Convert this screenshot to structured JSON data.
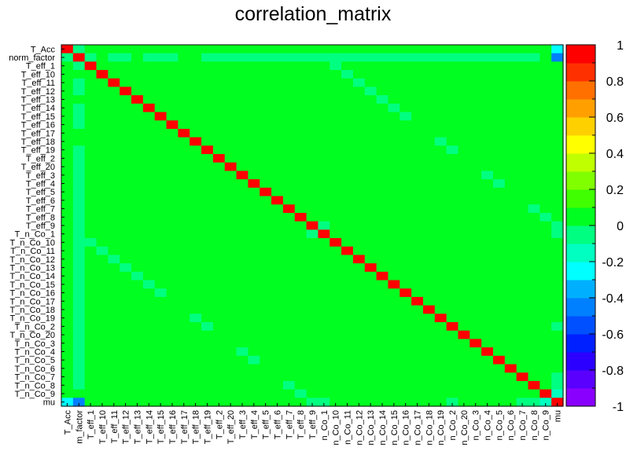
{
  "chart_data": {
    "type": "heatmap",
    "title": "correlation_matrix",
    "xlabel": "",
    "ylabel": "",
    "labels": [
      "T_Acc",
      "norm_factor",
      "T_eff_1",
      "T_eff_10",
      "T_eff_11",
      "T_eff_12",
      "T_eff_13",
      "T_eff_14",
      "T_eff_15",
      "T_eff_16",
      "T_eff_17",
      "T_eff_18",
      "T_eff_19",
      "T_eff_2",
      "T_eff_20",
      "T_eff_3",
      "T_eff_4",
      "T_eff_5",
      "T_eff_6",
      "T_eff_7",
      "T_eff_8",
      "T_eff_9",
      "T_n_Co_1",
      "T_n_Co_10",
      "T_n_Co_11",
      "T_n_Co_12",
      "T_n_Co_13",
      "T_n_Co_14",
      "T_n_Co_15",
      "T_n_Co_16",
      "T_n_Co_17",
      "T_n_Co_18",
      "T_n_Co_19",
      "T_n_Co_2",
      "T_n_Co_20",
      "T_n_Co_3",
      "T_n_Co_4",
      "T_n_Co_5",
      "T_n_Co_6",
      "T_n_Co_7",
      "T_n_Co_8",
      "T_n_Co_9",
      "mu"
    ],
    "x_tick_labels": [
      "T_Acc",
      "m_factor",
      "T_eff_1",
      "T_eff_10",
      "T_eff_11",
      "T_eff_12",
      "T_eff_13",
      "T_eff_14",
      "T_eff_15",
      "T_eff_16",
      "T_eff_17",
      "T_eff_18",
      "T_eff_19",
      "T_eff_2",
      "T_eff_20",
      "T_eff_3",
      "T_eff_4",
      "T_eff_5",
      "T_eff_6",
      "T_eff_7",
      "T_eff_8",
      "T_eff_9",
      "n_Co_1",
      "n_Co_10",
      "n_Co_11",
      "n_Co_12",
      "n_Co_13",
      "n_Co_14",
      "n_Co_15",
      "n_Co_16",
      "n_Co_17",
      "n_Co_18",
      "n_Co_19",
      "n_Co_2",
      "n_Co_20",
      "n_Co_3",
      "n_Co_4",
      "n_Co_5",
      "n_Co_6",
      "n_Co_7",
      "n_Co_8",
      "n_Co_9",
      "mu"
    ],
    "y_tick_labels": [
      "T_Acc",
      "norm_factor",
      "T_eff_1",
      "T_eff_10",
      "T_eff_11",
      "T_eff_12",
      "T_eff_13",
      "T_eff_14",
      "T_eff_15",
      "T_eff_16",
      "T_eff_17",
      "T_eff_18",
      "T_eff_19",
      "T_eff_2",
      "T_eff_20",
      "T_eff_3",
      "T_eff_4",
      "T_eff_5",
      "T_eff_6",
      "T_eff_7",
      "T_eff_8",
      "T_eff_9",
      "T_n_Co_1",
      "T_n_Co_10",
      "T_n_Co_11",
      "T_n_Co_12",
      "T_n_Co_13",
      "T_n_Co_14",
      "T_n_Co_15",
      "T_n_Co_16",
      "T_n_Co_17",
      "T_n_Co_18",
      "T_n_Co_19",
      "T_n_Co_2",
      "T_n_Co_20",
      "T_n_Co_3",
      "T_n_Co_4",
      "T_n_Co_5",
      "T_n_Co_6",
      "T_n_Co_7",
      "T_n_Co_8",
      "T_n_Co_9",
      "mu"
    ],
    "default_value": 0,
    "diagonal_value": 1,
    "off_diagonal": [
      {
        "a": "T_Acc",
        "b": "mu",
        "value": -0.28
      },
      {
        "a": "norm_factor",
        "b": "mu",
        "value": -0.45
      },
      {
        "a": "T_Acc",
        "b": "norm_factor",
        "value": -0.05
      },
      {
        "a": "norm_factor",
        "b": "T_eff_11",
        "value": -0.05
      },
      {
        "a": "norm_factor",
        "b": "T_eff_12",
        "value": -0.05
      },
      {
        "a": "norm_factor",
        "b": "T_eff_16",
        "value": -0.05
      },
      {
        "a": "norm_factor",
        "b": "T_eff_19",
        "value": -0.05
      },
      {
        "a": "norm_factor",
        "b": "T_eff_3",
        "value": -0.05
      },
      {
        "a": "norm_factor",
        "b": "T_eff_6",
        "value": -0.05
      },
      {
        "a": "norm_factor",
        "b": "T_eff_8",
        "value": -0.05
      },
      {
        "a": "norm_factor",
        "b": "T_eff_9",
        "value": -0.05
      },
      {
        "a": "norm_factor",
        "b": "T_n_Co_1",
        "value": -0.05
      },
      {
        "a": "norm_factor",
        "b": "T_n_Co_11",
        "value": -0.05
      },
      {
        "a": "norm_factor",
        "b": "T_n_Co_12",
        "value": -0.05
      },
      {
        "a": "norm_factor",
        "b": "T_n_Co_15",
        "value": -0.05
      },
      {
        "a": "norm_factor",
        "b": "T_n_Co_16",
        "value": -0.05
      },
      {
        "a": "norm_factor",
        "b": "T_n_Co_17",
        "value": -0.05
      },
      {
        "a": "norm_factor",
        "b": "T_n_Co_18",
        "value": -0.05
      },
      {
        "a": "norm_factor",
        "b": "T_n_Co_19",
        "value": -0.05
      },
      {
        "a": "norm_factor",
        "b": "T_n_Co_2",
        "value": -0.05
      },
      {
        "a": "norm_factor",
        "b": "T_n_Co_20",
        "value": -0.05
      },
      {
        "a": "norm_factor",
        "b": "T_n_Co_3",
        "value": -0.05
      },
      {
        "a": "norm_factor",
        "b": "T_n_Co_4",
        "value": -0.05
      },
      {
        "a": "norm_factor",
        "b": "T_n_Co_5",
        "value": -0.05
      },
      {
        "a": "norm_factor",
        "b": "T_n_Co_6",
        "value": -0.05
      },
      {
        "a": "norm_factor",
        "b": "T_n_Co_7",
        "value": -0.05
      },
      {
        "a": "T_eff_1",
        "b": "T_n_Co_10",
        "value": -0.05
      },
      {
        "a": "T_eff_10",
        "b": "T_n_Co_11",
        "value": -0.05
      },
      {
        "a": "T_eff_11",
        "b": "T_n_Co_12",
        "value": -0.05
      },
      {
        "a": "T_eff_12",
        "b": "T_n_Co_13",
        "value": -0.05
      },
      {
        "a": "T_eff_13",
        "b": "T_n_Co_14",
        "value": -0.05
      },
      {
        "a": "T_eff_14",
        "b": "T_n_Co_15",
        "value": -0.05
      },
      {
        "a": "T_eff_15",
        "b": "T_n_Co_16",
        "value": -0.05
      },
      {
        "a": "T_eff_19",
        "b": "T_n_Co_2",
        "value": -0.05
      },
      {
        "a": "T_eff_3",
        "b": "T_n_Co_4",
        "value": -0.05
      },
      {
        "a": "T_eff_4",
        "b": "T_n_Co_5",
        "value": -0.05
      },
      {
        "a": "T_eff_7",
        "b": "T_n_Co_8",
        "value": -0.05
      },
      {
        "a": "T_eff_8",
        "b": "T_n_Co_9",
        "value": -0.05
      },
      {
        "a": "T_eff_9",
        "b": "T_n_Co_1",
        "value": -0.05
      },
      {
        "a": "T_eff_18",
        "b": "T_n_Co_19",
        "value": -0.05
      },
      {
        "a": "T_eff_9",
        "b": "mu",
        "value": -0.05
      },
      {
        "a": "T_n_Co_1",
        "b": "mu",
        "value": -0.05
      },
      {
        "a": "T_n_Co_2",
        "b": "mu",
        "value": -0.05
      },
      {
        "a": "T_n_Co_9",
        "b": "mu",
        "value": -0.12
      },
      {
        "a": "T_n_Co_8",
        "b": "mu",
        "value": -0.05
      },
      {
        "a": "T_n_Co_7",
        "b": "mu",
        "value": -0.05
      }
    ],
    "edge_weak": {
      "rows": [
        "T_eff_1",
        "T_eff_12",
        "T_eff_14",
        "T_eff_15",
        "T_eff_16",
        "T_eff_2",
        "T_eff_20",
        "T_eff_3",
        "T_eff_4",
        "T_eff_5",
        "T_eff_6",
        "T_eff_7",
        "T_eff_8",
        "T_n_Co_11",
        "T_n_Co_12",
        "T_n_Co_13",
        "T_n_Co_14",
        "T_n_Co_15",
        "T_n_Co_16",
        "T_n_Co_17",
        "T_n_Co_18",
        "T_n_Co_19",
        "T_n_Co_2",
        "T_n_Co_20",
        "T_n_Co_3",
        "T_n_Co_4",
        "T_n_Co_5",
        "T_n_Co_6",
        "T_n_Co_7",
        "T_n_Co_8",
        "T_n_Co_10"
      ],
      "value": -0.05
    },
    "colorbar": {
      "min": -1,
      "max": 1,
      "ticks": [
        "-1",
        "-0.8",
        "-0.6",
        "-0.4",
        "-0.2",
        "0",
        "0.2",
        "0.4",
        "0.6",
        "0.8",
        "1"
      ]
    }
  }
}
